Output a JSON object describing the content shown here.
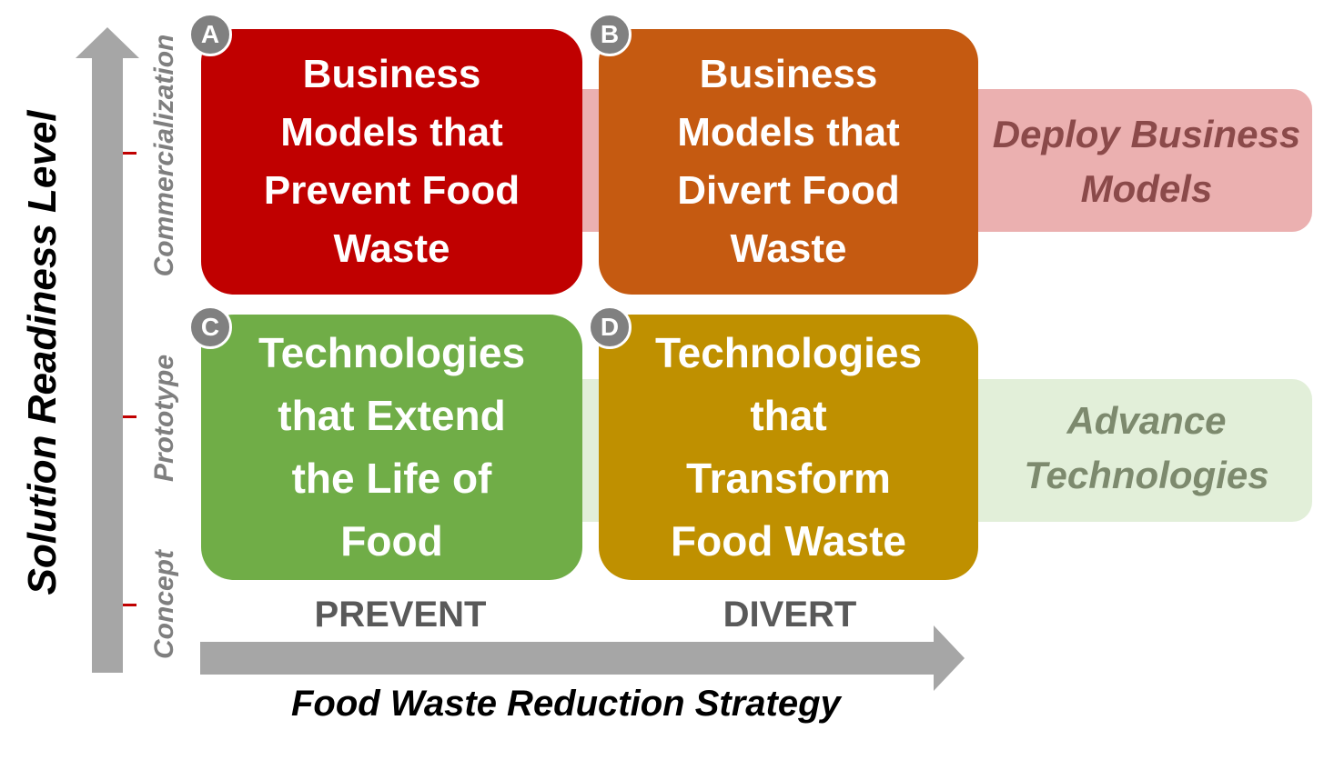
{
  "axes": {
    "y_title": "Solution Readiness Level",
    "x_title": "Food Waste Reduction Strategy",
    "levels": [
      "Commercialization",
      "Prototype",
      "Concept"
    ],
    "columns": [
      "PREVENT",
      "DIVERT"
    ]
  },
  "bands": {
    "top": "Deploy Business Models",
    "bottom": "Advance Technologies"
  },
  "quadrants": [
    {
      "id": "A",
      "lines": [
        "Business",
        "Models that",
        "Prevent Food",
        "Waste"
      ],
      "color": "#c00000"
    },
    {
      "id": "B",
      "lines": [
        "Business",
        "Models that",
        "Divert Food",
        "Waste"
      ],
      "color": "#c55a11"
    },
    {
      "id": "C",
      "lines": [
        "Technologies",
        "that Extend",
        "the Life of",
        "Food"
      ],
      "color": "#70ad47"
    },
    {
      "id": "D",
      "lines": [
        "Technologies",
        "that",
        "Transform",
        "Food Waste"
      ],
      "color": "#bf9000"
    }
  ],
  "colors": {
    "axis": "#a6a6a6",
    "tick": "#c00000",
    "band_top": "#ebb0b0",
    "band_top_text": "#8b4a4a",
    "band_bottom": "#e2efd9",
    "band_bottom_text": "#7d8a6e"
  }
}
